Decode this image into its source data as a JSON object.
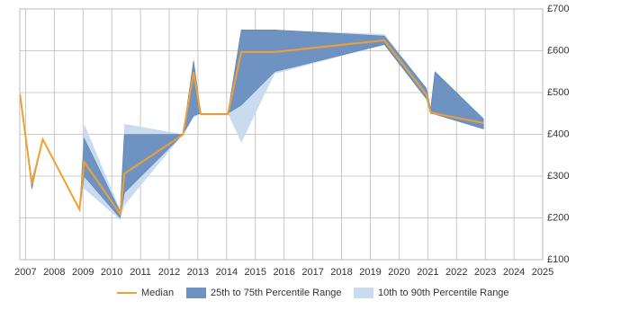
{
  "chart_data": {
    "type": "band-line",
    "x": [
      2006.81,
      2007.22,
      2007.6,
      2008.88,
      2009.04,
      2010.29,
      2010.44,
      2012.48,
      2012.85,
      2013.1,
      2014.04,
      2014.51,
      2015.67,
      2019.49,
      2020.95,
      2021.1,
      2021.25,
      2022.94
    ],
    "series": [
      {
        "name": "10th to 90th Percentile Range",
        "color": "#c9dbee",
        "lower": [
          495,
          265,
          388,
          220,
          270,
          195,
          230,
          400,
          440,
          450,
          450,
          380,
          545,
          615,
          485,
          450,
          448,
          413
        ],
        "upper": [
          495,
          295,
          388,
          220,
          425,
          220,
          425,
          400,
          585,
          450,
          450,
          650,
          650,
          640,
          512,
          465,
          550,
          437
        ]
      },
      {
        "name": "25th to 75th Percentile Range",
        "color": "#6e93c2",
        "lower": [
          495,
          270,
          388,
          220,
          300,
          200,
          260,
          400,
          445,
          450,
          450,
          470,
          550,
          615,
          485,
          450,
          448,
          413
        ],
        "upper": [
          495,
          290,
          388,
          220,
          390,
          215,
          400,
          400,
          575,
          450,
          450,
          650,
          650,
          635,
          510,
          460,
          550,
          437
        ]
      },
      {
        "name": "Median",
        "color": "#f0a030",
        "values": [
          495,
          281,
          388,
          220,
          334,
          210,
          306,
          399,
          549,
          448,
          448,
          597,
          597,
          625,
          495,
          453,
          450,
          427
        ]
      }
    ],
    "xlim": [
      2006.8,
      2025
    ],
    "xticks": [
      2007,
      2008,
      2009,
      2010,
      2011,
      2012,
      2013,
      2014,
      2015,
      2016,
      2017,
      2018,
      2019,
      2020,
      2021,
      2022,
      2023,
      2024,
      2025
    ],
    "ylim": [
      100,
      700
    ],
    "yticks": [
      {
        "value": 100,
        "label": "£100"
      },
      {
        "value": 200,
        "label": "£200"
      },
      {
        "value": 300,
        "label": "£300"
      },
      {
        "value": 400,
        "label": "£400"
      },
      {
        "value": 500,
        "label": "£500"
      },
      {
        "value": 600,
        "label": "£600"
      },
      {
        "value": 700,
        "label": "£700"
      }
    ],
    "grid": true
  }
}
